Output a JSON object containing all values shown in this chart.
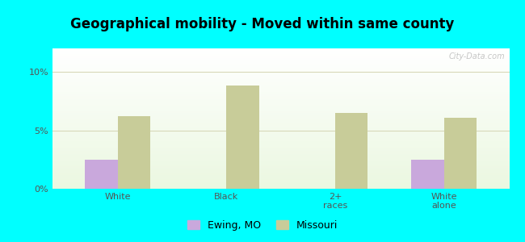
{
  "title": "Geographical mobility - Moved within same county",
  "categories": [
    "White",
    "Black",
    "2+\nraces",
    "White\nalone"
  ],
  "ewing_values": [
    2.5,
    0.0,
    0.0,
    2.5
  ],
  "missouri_values": [
    6.2,
    8.8,
    6.5,
    6.1
  ],
  "ewing_color": "#c9a8dc",
  "missouri_color": "#c8cc99",
  "ylim": [
    0,
    12
  ],
  "yticks": [
    0,
    5,
    10
  ],
  "ytick_labels": [
    "0%",
    "5%",
    "10%"
  ],
  "background_color": "#00ffff",
  "grid_color": "#d8d8b8",
  "title_fontsize": 12,
  "legend_labels": [
    "Ewing, MO",
    "Missouri"
  ],
  "watermark": "City-Data.com",
  "bar_width": 0.3
}
